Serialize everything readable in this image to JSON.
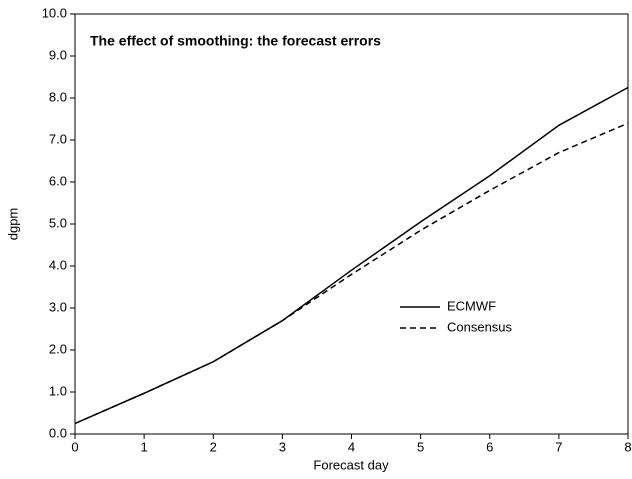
{
  "chart_data": {
    "type": "line",
    "title": "The effect of smoothing: the forecast errors",
    "x_label": "Forecast day",
    "y_label": "dgpm",
    "x": [
      0,
      1,
      2,
      3,
      4,
      5,
      6,
      7,
      8
    ],
    "series": [
      {
        "name": "ECMWF",
        "color": "#000000",
        "style": "solid",
        "values": [
          0.25,
          0.97,
          1.72,
          2.7,
          3.9,
          5.05,
          6.15,
          7.35,
          8.25
        ]
      },
      {
        "name": "Consensus",
        "color": "#000000",
        "style": "dashed",
        "values": [
          0.25,
          0.97,
          1.72,
          2.7,
          3.8,
          4.85,
          5.8,
          6.7,
          7.4
        ]
      }
    ],
    "xlim": [
      0,
      8
    ],
    "xticks": [
      0,
      1,
      2,
      3,
      4,
      5,
      6,
      7,
      8
    ],
    "ylim": [
      0,
      10
    ],
    "yticks": [
      {
        "value": 0,
        "label": "0.0"
      },
      {
        "value": 1,
        "label": "1.0"
      },
      {
        "value": 2,
        "label": "2.0"
      },
      {
        "value": 3,
        "label": "3.0"
      },
      {
        "value": 4,
        "label": "4.0"
      },
      {
        "value": 5,
        "label": "5.0"
      },
      {
        "value": 6,
        "label": "6.0"
      },
      {
        "value": 7,
        "label": "7.0"
      },
      {
        "value": 8,
        "label": "8.0"
      },
      {
        "value": 9,
        "label": "9.0"
      },
      {
        "value": 10,
        "label": "10.0"
      }
    ],
    "grid": false,
    "legend": "right"
  }
}
